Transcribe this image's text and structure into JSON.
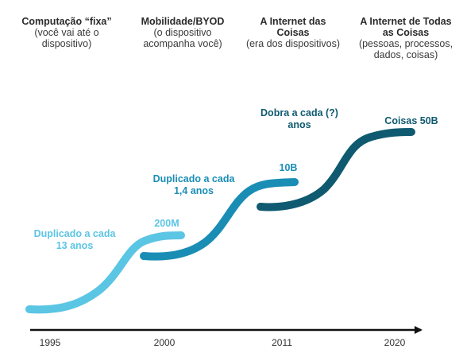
{
  "eras": [
    {
      "title": "Computação “fixa”",
      "subtitle": "(você vai até o dispositivo)"
    },
    {
      "title": "Mobilidade/BYOD",
      "subtitle": "(o dispositivo acompanha você)"
    },
    {
      "title": "A Internet das Coisas",
      "subtitle": "(era dos dispositivos)"
    },
    {
      "title": "A Internet de Todas as Coisas",
      "subtitle": "(pessoas, processos, dados, coisas)"
    }
  ],
  "curves": [
    {
      "rate_label_1": "Duplicado a cada",
      "rate_label_2": "13 anos",
      "end_label": "200M",
      "color": "#5bc5e4"
    },
    {
      "rate_label_1": "Duplicado a cada",
      "rate_label_2": "1,4 anos",
      "end_label": "10B",
      "color": "#1a8db5"
    },
    {
      "rate_label_1": "Dobra a cada (?)",
      "rate_label_2": "anos",
      "end_label": "Coisas 50B",
      "color": "#0f5a70"
    }
  ],
  "timeline": {
    "years": [
      "1995",
      "2000",
      "2011",
      "2020"
    ],
    "axis_color": "#111111"
  }
}
